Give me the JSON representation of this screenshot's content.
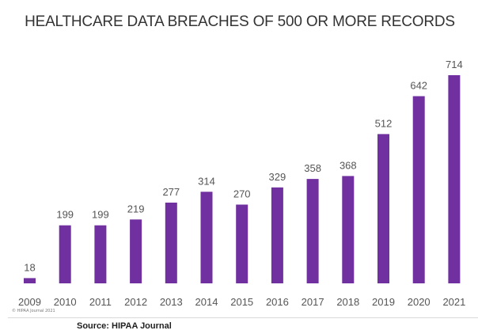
{
  "chart_data": {
    "type": "bar",
    "title": "HEALTHCARE DATA BREACHES OF 500 OR MORE RECORDS",
    "categories": [
      "2009",
      "2010",
      "2011",
      "2012",
      "2013",
      "2014",
      "2015",
      "2016",
      "2017",
      "2018",
      "2019",
      "2020",
      "2021"
    ],
    "values": [
      18,
      199,
      199,
      219,
      277,
      314,
      270,
      329,
      358,
      368,
      512,
      642,
      714
    ],
    "ylim": [
      0,
      714
    ],
    "xlabel": "",
    "ylabel": "",
    "grid": false,
    "legend": "none",
    "bar_color": "#7030a0"
  },
  "copyright": "© HIPAA Journal 2021",
  "source": "Source: HIPAA Journal"
}
